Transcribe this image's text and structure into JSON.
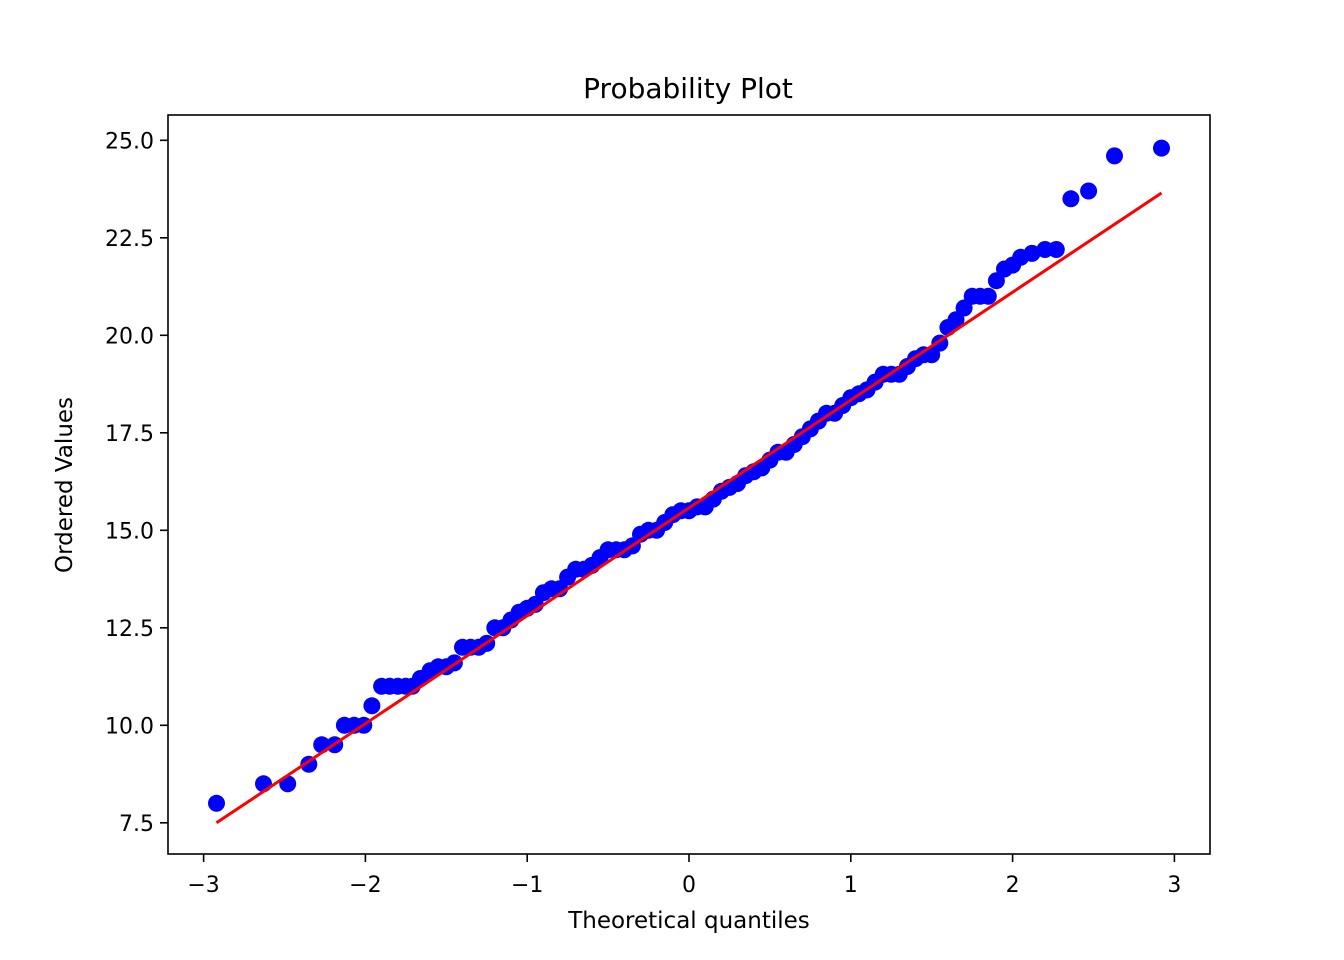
{
  "chart_data": {
    "type": "scatter",
    "title": "Probability Plot",
    "xlabel": "Theoretical quantiles",
    "ylabel": "Ordered Values",
    "xlim": [
      -3.22,
      3.22
    ],
    "ylim": [
      6.7,
      25.65
    ],
    "xticks": [
      -3,
      -2,
      -1,
      0,
      1,
      2,
      3
    ],
    "xtick_labels": [
      "−3",
      "−2",
      "−1",
      "0",
      "1",
      "2",
      "3"
    ],
    "yticks": [
      7.5,
      10.0,
      12.5,
      15.0,
      17.5,
      20.0,
      22.5,
      25.0
    ],
    "ytick_labels": [
      "7.5",
      "10.0",
      "12.5",
      "15.0",
      "17.5",
      "20.0",
      "22.5",
      "25.0"
    ],
    "grid": false,
    "legend": "none",
    "colors": {
      "points": "#0000ff",
      "fit_line": "#ff0000"
    },
    "series": [
      {
        "kind": "points",
        "x": [
          -2.92,
          -2.63,
          -2.48,
          -2.35,
          -2.27,
          -2.19,
          -2.13,
          -2.07,
          -2.01,
          -1.96,
          -1.9,
          -1.85,
          -1.8,
          -1.75,
          -1.71,
          -1.66,
          -1.6,
          -1.55,
          -1.5,
          -1.45,
          -1.4,
          -1.35,
          -1.3,
          -1.25,
          -1.2,
          -1.15,
          -1.1,
          -1.05,
          -1.0,
          -0.95,
          -0.9,
          -0.85,
          -0.8,
          -0.75,
          -0.7,
          -0.65,
          -0.6,
          -0.55,
          -0.5,
          -0.45,
          -0.4,
          -0.35,
          -0.3,
          -0.25,
          -0.2,
          -0.15,
          -0.1,
          -0.05,
          0.0,
          0.05,
          0.1,
          0.15,
          0.2,
          0.25,
          0.3,
          0.35,
          0.4,
          0.45,
          0.5,
          0.55,
          0.6,
          0.65,
          0.7,
          0.75,
          0.8,
          0.85,
          0.9,
          0.95,
          1.0,
          1.05,
          1.1,
          1.15,
          1.2,
          1.25,
          1.3,
          1.35,
          1.4,
          1.45,
          1.5,
          1.55,
          1.6,
          1.65,
          1.7,
          1.75,
          1.8,
          1.85,
          1.9,
          1.95,
          2.0,
          2.05,
          2.12,
          2.2,
          2.27,
          2.36,
          2.47,
          2.63,
          2.92
        ],
        "y": [
          8.0,
          8.5,
          8.5,
          9.0,
          9.5,
          9.5,
          10.0,
          10.0,
          10.0,
          10.5,
          11.0,
          11.0,
          11.0,
          11.0,
          11.0,
          11.2,
          11.4,
          11.5,
          11.5,
          11.6,
          12.0,
          12.0,
          12.0,
          12.1,
          12.5,
          12.5,
          12.7,
          12.9,
          13.0,
          13.1,
          13.4,
          13.5,
          13.5,
          13.8,
          14.0,
          14.0,
          14.1,
          14.3,
          14.5,
          14.5,
          14.5,
          14.6,
          14.9,
          15.0,
          15.0,
          15.2,
          15.4,
          15.5,
          15.5,
          15.6,
          15.6,
          15.8,
          16.0,
          16.1,
          16.2,
          16.4,
          16.5,
          16.6,
          16.8,
          17.0,
          17.0,
          17.2,
          17.4,
          17.6,
          17.8,
          18.0,
          18.0,
          18.2,
          18.4,
          18.5,
          18.6,
          18.8,
          19.0,
          19.0,
          19.0,
          19.2,
          19.4,
          19.5,
          19.5,
          19.8,
          20.2,
          20.4,
          20.7,
          21.0,
          21.0,
          21.0,
          21.4,
          21.7,
          21.8,
          22.0,
          22.1,
          22.2,
          22.2,
          23.5,
          23.7,
          24.6,
          24.8
        ]
      },
      {
        "kind": "fit-line",
        "x": [
          -2.92,
          2.92
        ],
        "y": [
          7.5,
          23.65
        ]
      }
    ]
  }
}
